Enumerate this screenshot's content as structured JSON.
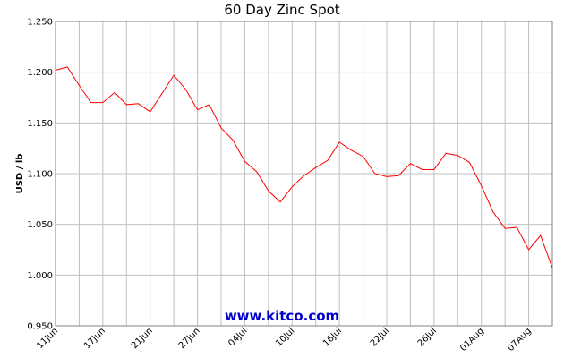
{
  "chart_data": {
    "type": "line",
    "title": "60 Day Zinc Spot",
    "y_label": "USD / lb",
    "watermark": "www.kitco.com",
    "categories": [
      "11Jun",
      null,
      null,
      null,
      "17Jun",
      null,
      null,
      null,
      "21Jun",
      null,
      null,
      null,
      "27Jun",
      null,
      null,
      null,
      "04Jul",
      null,
      null,
      null,
      "10Jul",
      null,
      null,
      null,
      "16Jul",
      null,
      null,
      null,
      "22Jul",
      null,
      null,
      null,
      "26Jul",
      null,
      null,
      null,
      "01Aug",
      null,
      null,
      null,
      "07Aug",
      null,
      null
    ],
    "series": [
      {
        "name": "Zinc",
        "color": "#ff0000",
        "values": [
          1.202,
          1.205,
          1.187,
          1.17,
          1.17,
          1.18,
          1.168,
          1.169,
          1.161,
          1.179,
          1.197,
          1.183,
          1.163,
          1.168,
          1.145,
          1.133,
          1.112,
          1.102,
          1.083,
          1.072,
          1.087,
          1.098,
          1.106,
          1.113,
          1.131,
          1.123,
          1.117,
          1.1,
          1.097,
          1.098,
          1.11,
          1.104,
          1.104,
          1.12,
          1.118,
          1.111,
          1.088,
          1.062,
          1.046,
          1.047,
          1.025,
          1.039,
          1.007
        ]
      }
    ],
    "ylim": [
      0.95,
      1.25
    ],
    "yticks": [
      {
        "value": 0.95,
        "label": "0.950"
      },
      {
        "value": 1.0,
        "label": "1.000"
      },
      {
        "value": 1.05,
        "label": "1.050"
      },
      {
        "value": 1.1,
        "label": "1.100"
      },
      {
        "value": 1.15,
        "label": "1.150"
      },
      {
        "value": 1.2,
        "label": "1.200"
      },
      {
        "value": 1.25,
        "label": "1.250"
      }
    ],
    "grid": true
  }
}
